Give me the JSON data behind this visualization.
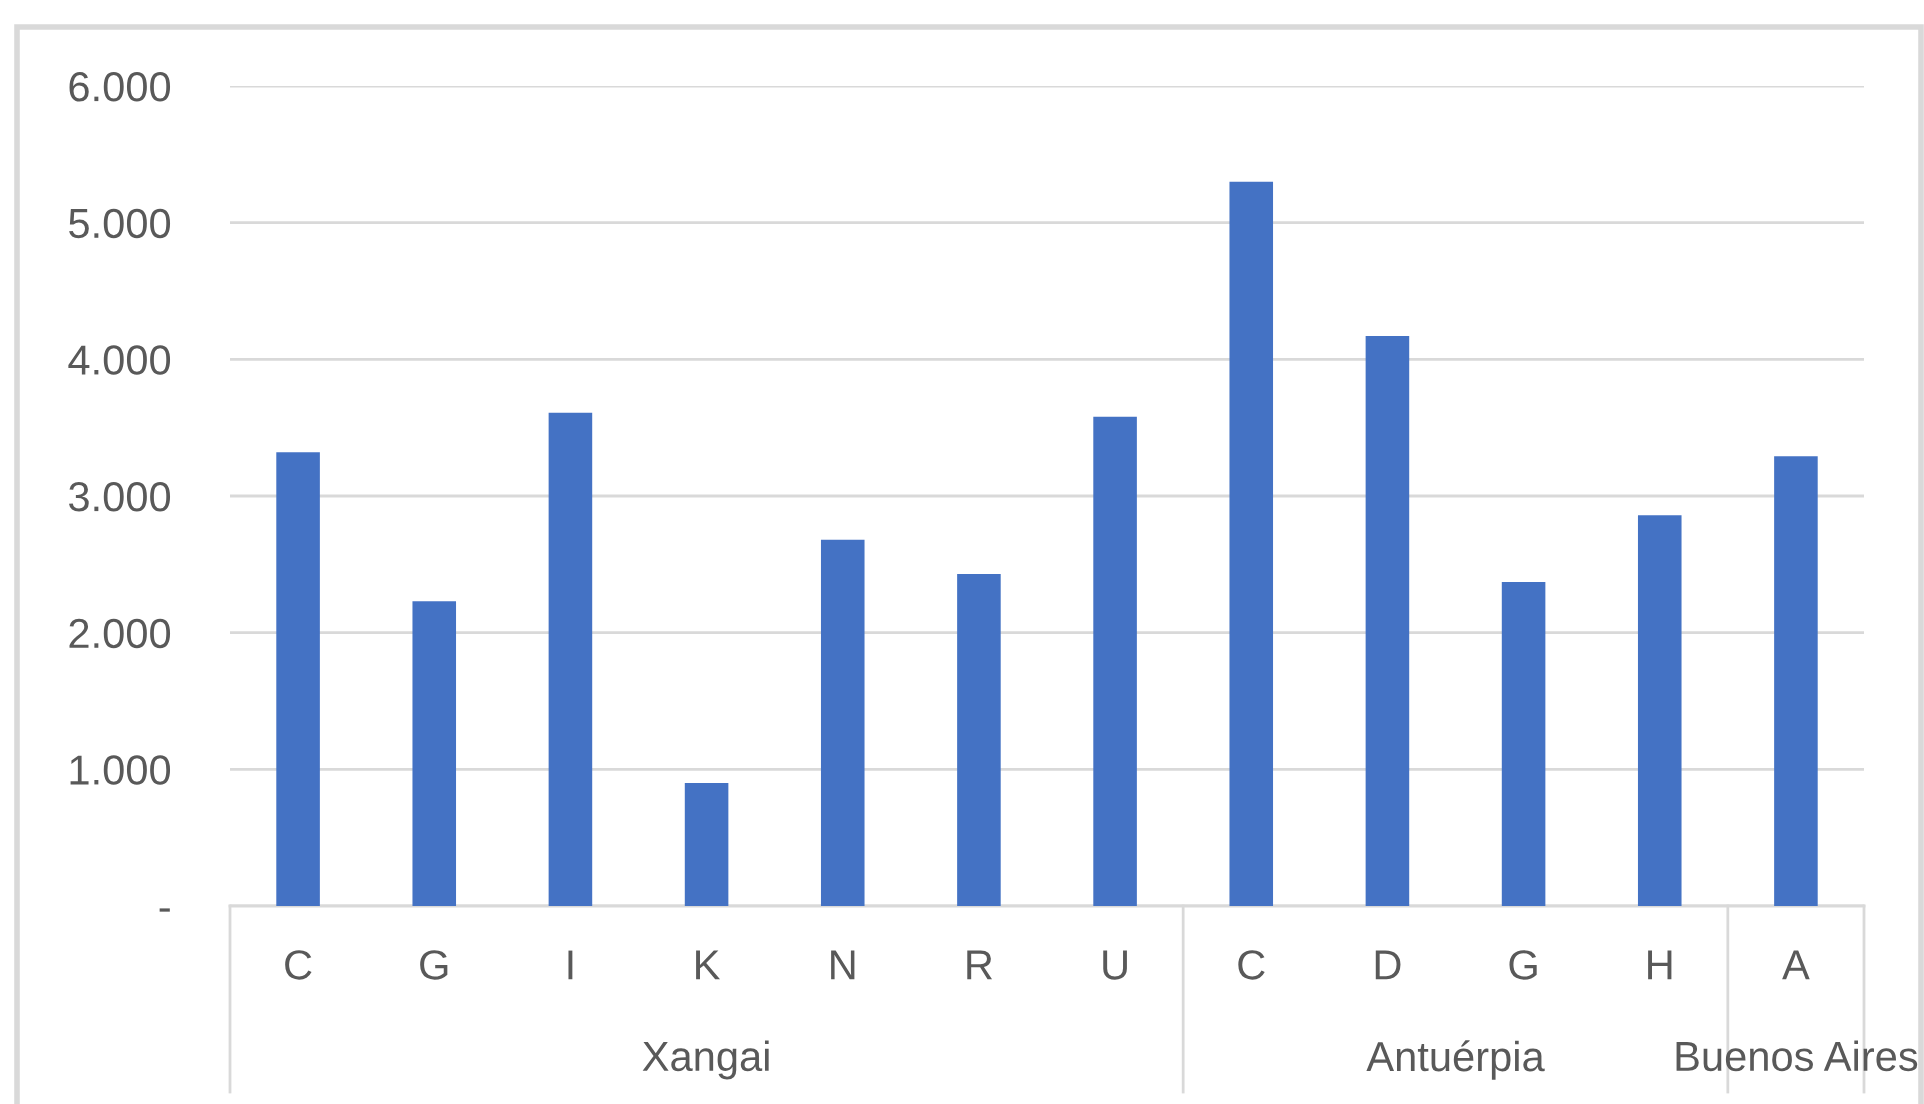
{
  "chart_data": {
    "type": "bar",
    "categories": [
      "C",
      "G",
      "I",
      "K",
      "N",
      "R",
      "U",
      "C",
      "D",
      "G",
      "H",
      "A"
    ],
    "values": [
      3320,
      2230,
      3610,
      900,
      2680,
      2430,
      3580,
      5300,
      4170,
      2370,
      2860,
      3290
    ],
    "color": "#4472c4",
    "ylim": [
      0,
      6000
    ],
    "yticks": [
      {
        "value": 0,
        "label": "-"
      },
      {
        "value": 1000,
        "label": "1.000"
      },
      {
        "value": 2000,
        "label": "2.000"
      },
      {
        "value": 3000,
        "label": "3.000"
      },
      {
        "value": 4000,
        "label": "4.000"
      },
      {
        "value": 5000,
        "label": "5.000"
      },
      {
        "value": 6000,
        "label": "6.000"
      }
    ],
    "grid": "y",
    "annotations": [
      "Xangai",
      "Antuérpia",
      "Buenos Aires"
    ]
  }
}
